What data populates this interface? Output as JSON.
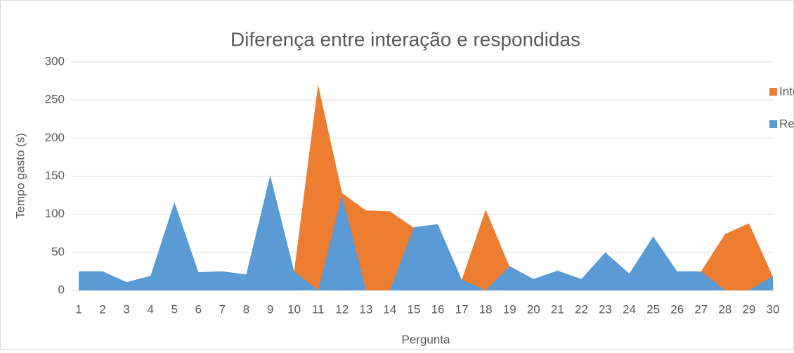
{
  "chart_data": {
    "type": "area",
    "title": "Diferença entre interação e respondidas",
    "x_label": "Pergunta",
    "y_label": "Tempo gasto (s)",
    "categories": [
      "1",
      "2",
      "3",
      "4",
      "5",
      "6",
      "7",
      "8",
      "9",
      "10",
      "11",
      "12",
      "13",
      "14",
      "15",
      "16",
      "17",
      "18",
      "19",
      "20",
      "21",
      "22",
      "23",
      "24",
      "25",
      "26",
      "27",
      "28",
      "29",
      "30"
    ],
    "series": [
      {
        "name": "Interação",
        "color": "#ed7d31",
        "values": [
          0,
          0,
          0,
          0,
          0,
          0,
          0,
          0,
          0,
          25,
          270,
          128,
          105,
          104,
          82,
          0,
          14,
          106,
          31,
          0,
          0,
          0,
          0,
          0,
          0,
          0,
          25,
          74,
          88,
          18
        ]
      },
      {
        "name": "Respondidas",
        "color": "#5b9bd5",
        "values": [
          25,
          25,
          11,
          19,
          116,
          24,
          25,
          21,
          151,
          25,
          0,
          125,
          0,
          0,
          83,
          87,
          14,
          0,
          32,
          15,
          26,
          15,
          50,
          22,
          71,
          25,
          25,
          0,
          0,
          19
        ]
      }
    ],
    "ylim": [
      0,
      300
    ],
    "yticks": [
      0,
      50,
      100,
      150,
      200,
      250,
      300
    ],
    "grid": true,
    "legend": "top-right"
  }
}
